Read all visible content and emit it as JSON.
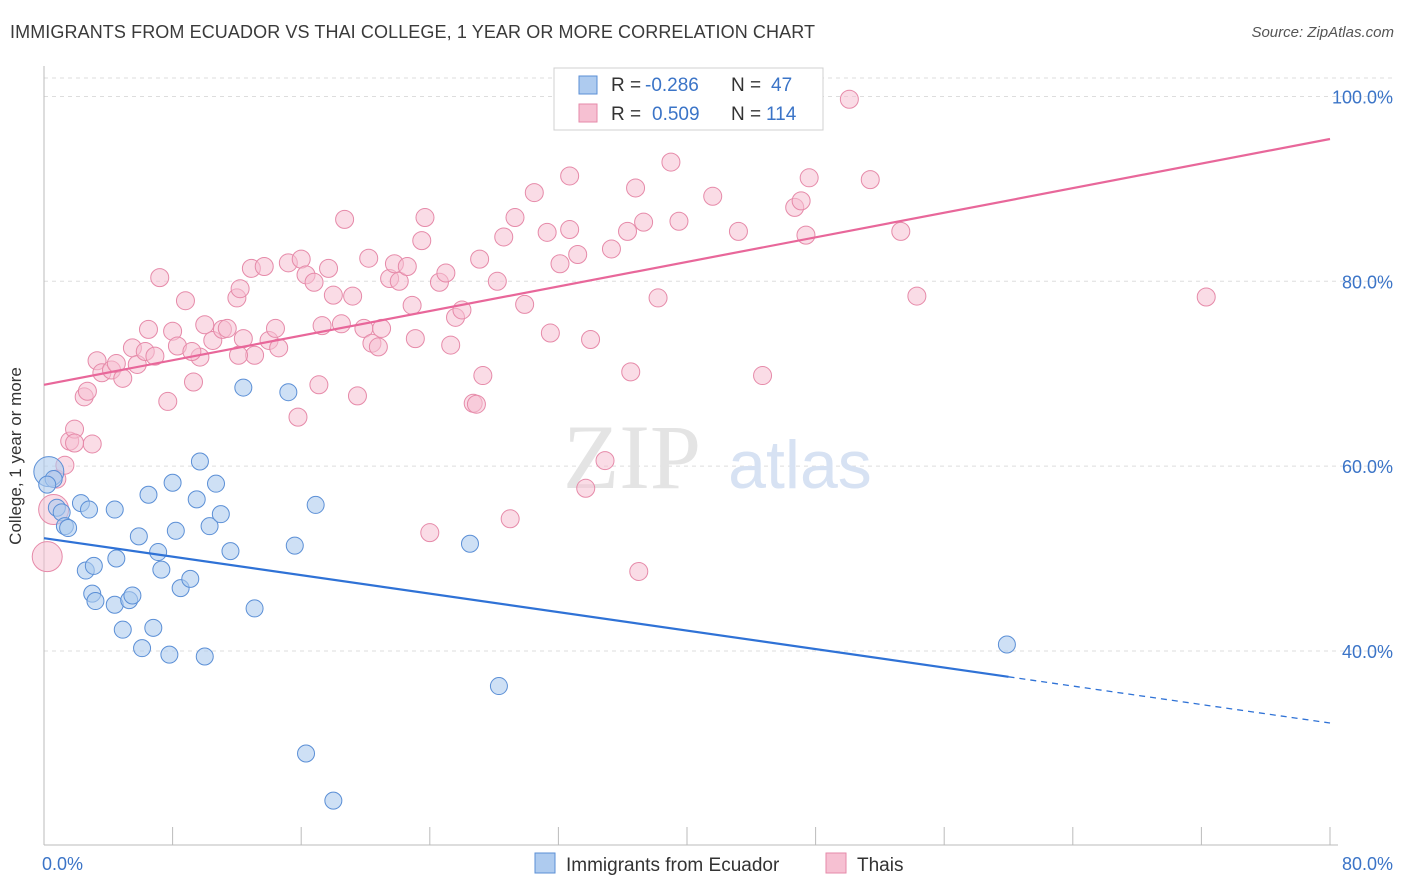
{
  "title": "IMMIGRANTS FROM ECUADOR VS THAI COLLEGE, 1 YEAR OR MORE CORRELATION CHART",
  "source": "Source: ZipAtlas.com",
  "watermark": {
    "zip": "ZIP",
    "atlas": "atlas"
  },
  "colors": {
    "ecuador_fill": "#aecbef",
    "ecuador_stroke": "#5b8fd6",
    "ecuador_line": "#2f72d6",
    "thai_fill": "#f6c0d2",
    "thai_stroke": "#e68aa9",
    "thai_line": "#e8679a",
    "tick_label": "#3b74c7",
    "grid": "#dddddd"
  },
  "legend": {
    "rows": [
      {
        "r_label": "R = ",
        "r_value": "-0.286",
        "n_label": "N = ",
        "n_value": "47"
      },
      {
        "r_label": "R = ",
        "r_value": "0.509",
        "n_label": "N = ",
        "n_value": "114"
      }
    ]
  },
  "bottom_legend": [
    "Immigrants from Ecuador",
    "Thais"
  ],
  "chart_data": {
    "type": "scatter",
    "title": "IMMIGRANTS FROM ECUADOR VS THAI COLLEGE, 1 YEAR OR MORE CORRELATION CHART",
    "xlabel": "",
    "ylabel": "College, 1 year or more",
    "xlim": [
      0,
      80
    ],
    "ylim": [
      19,
      102
    ],
    "x_tick_labels": [
      "0.0%",
      "80.0%"
    ],
    "y_ticks": [
      40,
      60,
      80,
      100
    ],
    "y_tick_labels": [
      "40.0%",
      "60.0%",
      "80.0%",
      "100.0%"
    ],
    "grid": true,
    "legend_position": "top-center",
    "series": [
      {
        "name": "Immigrants from Ecuador",
        "r": -0.286,
        "n": 47,
        "trend": {
          "x0": 0,
          "y0": 52.2,
          "x1": 60.0,
          "y1": 37.2,
          "dashed_to_x": 80,
          "dashed_to_y": 32.2
        },
        "points": [
          [
            0.3,
            59.4
          ],
          [
            0.6,
            58.6
          ],
          [
            0.8,
            55.5
          ],
          [
            1.1,
            55.0
          ],
          [
            1.3,
            53.5
          ],
          [
            1.5,
            53.3
          ],
          [
            2.3,
            56.0
          ],
          [
            2.8,
            55.3
          ],
          [
            2.6,
            48.7
          ],
          [
            3.1,
            49.2
          ],
          [
            3.0,
            46.2
          ],
          [
            3.2,
            45.4
          ],
          [
            4.4,
            55.3
          ],
          [
            4.5,
            50.0
          ],
          [
            4.9,
            42.3
          ],
          [
            4.4,
            45.0
          ],
          [
            5.3,
            45.5
          ],
          [
            5.5,
            46.0
          ],
          [
            5.9,
            52.4
          ],
          [
            6.1,
            40.3
          ],
          [
            6.5,
            56.9
          ],
          [
            6.8,
            42.5
          ],
          [
            7.1,
            50.7
          ],
          [
            7.3,
            48.8
          ],
          [
            7.8,
            39.6
          ],
          [
            8.0,
            58.2
          ],
          [
            8.2,
            53.0
          ],
          [
            8.5,
            46.8
          ],
          [
            9.1,
            47.8
          ],
          [
            9.5,
            56.4
          ],
          [
            9.7,
            60.5
          ],
          [
            10.0,
            39.4
          ],
          [
            10.3,
            53.5
          ],
          [
            10.7,
            58.1
          ],
          [
            11.0,
            54.8
          ],
          [
            11.6,
            50.8
          ],
          [
            12.4,
            68.5
          ],
          [
            13.1,
            44.6
          ],
          [
            15.2,
            68.0
          ],
          [
            15.6,
            51.4
          ],
          [
            16.3,
            28.9
          ],
          [
            16.9,
            55.8
          ],
          [
            18.0,
            23.8
          ],
          [
            26.5,
            51.6
          ],
          [
            28.3,
            36.2
          ],
          [
            59.9,
            40.7
          ],
          [
            0.2,
            58.0
          ]
        ]
      },
      {
        "name": "Thais",
        "r": 0.509,
        "n": 114,
        "trend": {
          "x0": 0,
          "y0": 68.8,
          "x1": 80,
          "y1": 95.4
        },
        "points": [
          [
            0.2,
            50.2
          ],
          [
            0.6,
            55.3
          ],
          [
            0.8,
            58.6
          ],
          [
            1.3,
            60.1
          ],
          [
            1.6,
            62.7
          ],
          [
            1.9,
            64.0
          ],
          [
            2.5,
            67.5
          ],
          [
            2.7,
            68.1
          ],
          [
            3.0,
            62.4
          ],
          [
            3.3,
            71.4
          ],
          [
            3.6,
            70.1
          ],
          [
            4.2,
            70.4
          ],
          [
            4.5,
            71.1
          ],
          [
            4.9,
            69.5
          ],
          [
            5.5,
            72.8
          ],
          [
            5.8,
            71.0
          ],
          [
            6.3,
            72.4
          ],
          [
            6.5,
            74.8
          ],
          [
            6.9,
            71.9
          ],
          [
            7.2,
            80.4
          ],
          [
            7.7,
            67.0
          ],
          [
            8.0,
            74.6
          ],
          [
            8.3,
            73.0
          ],
          [
            8.8,
            77.9
          ],
          [
            9.3,
            69.1
          ],
          [
            9.7,
            71.8
          ],
          [
            10.0,
            75.3
          ],
          [
            10.5,
            73.6
          ],
          [
            11.1,
            74.8
          ],
          [
            11.4,
            74.9
          ],
          [
            12.0,
            78.2
          ],
          [
            12.2,
            79.2
          ],
          [
            12.4,
            73.8
          ],
          [
            12.9,
            81.4
          ],
          [
            13.1,
            72.0
          ],
          [
            13.7,
            81.6
          ],
          [
            14.0,
            73.6
          ],
          [
            14.4,
            74.9
          ],
          [
            14.6,
            72.8
          ],
          [
            15.2,
            82.0
          ],
          [
            15.8,
            65.3
          ],
          [
            16.0,
            82.4
          ],
          [
            16.3,
            80.7
          ],
          [
            16.8,
            79.9
          ],
          [
            17.1,
            68.8
          ],
          [
            17.3,
            75.2
          ],
          [
            17.7,
            81.4
          ],
          [
            18.0,
            78.5
          ],
          [
            18.5,
            75.4
          ],
          [
            18.7,
            86.7
          ],
          [
            19.2,
            78.4
          ],
          [
            19.5,
            67.6
          ],
          [
            19.9,
            74.9
          ],
          [
            20.2,
            82.5
          ],
          [
            20.4,
            73.3
          ],
          [
            20.8,
            72.9
          ],
          [
            21.0,
            74.9
          ],
          [
            21.5,
            80.3
          ],
          [
            21.8,
            81.9
          ],
          [
            22.1,
            80.0
          ],
          [
            22.6,
            81.6
          ],
          [
            22.9,
            77.4
          ],
          [
            23.1,
            73.8
          ],
          [
            23.5,
            84.4
          ],
          [
            23.7,
            86.9
          ],
          [
            24.6,
            79.9
          ],
          [
            25.0,
            80.9
          ],
          [
            25.3,
            73.1
          ],
          [
            25.6,
            76.1
          ],
          [
            26.0,
            76.9
          ],
          [
            26.7,
            66.8
          ],
          [
            27.1,
            82.4
          ],
          [
            27.3,
            69.8
          ],
          [
            28.2,
            80.0
          ],
          [
            28.6,
            84.8
          ],
          [
            29.0,
            54.3
          ],
          [
            29.3,
            86.9
          ],
          [
            29.9,
            77.5
          ],
          [
            30.5,
            89.6
          ],
          [
            31.3,
            85.3
          ],
          [
            31.5,
            74.4
          ],
          [
            32.1,
            81.9
          ],
          [
            32.7,
            85.6
          ],
          [
            32.7,
            91.4
          ],
          [
            33.2,
            82.9
          ],
          [
            33.7,
            57.6
          ],
          [
            34.0,
            73.7
          ],
          [
            34.9,
            60.6
          ],
          [
            35.3,
            83.5
          ],
          [
            36.3,
            85.4
          ],
          [
            36.5,
            70.2
          ],
          [
            36.8,
            90.1
          ],
          [
            37.0,
            48.6
          ],
          [
            37.3,
            86.4
          ],
          [
            38.2,
            78.2
          ],
          [
            39.0,
            92.9
          ],
          [
            39.5,
            86.5
          ],
          [
            41.6,
            89.2
          ],
          [
            43.2,
            85.4
          ],
          [
            44.7,
            69.8
          ],
          [
            46.7,
            88.0
          ],
          [
            47.1,
            88.7
          ],
          [
            47.4,
            85.0
          ],
          [
            47.6,
            91.2
          ],
          [
            50.1,
            99.7
          ],
          [
            51.4,
            91.0
          ],
          [
            53.3,
            85.4
          ],
          [
            54.3,
            78.4
          ],
          [
            72.3,
            78.3
          ],
          [
            24.0,
            52.8
          ],
          [
            1.9,
            62.5
          ],
          [
            9.2,
            72.4
          ],
          [
            26.9,
            66.7
          ],
          [
            12.1,
            72.0
          ]
        ]
      }
    ]
  }
}
